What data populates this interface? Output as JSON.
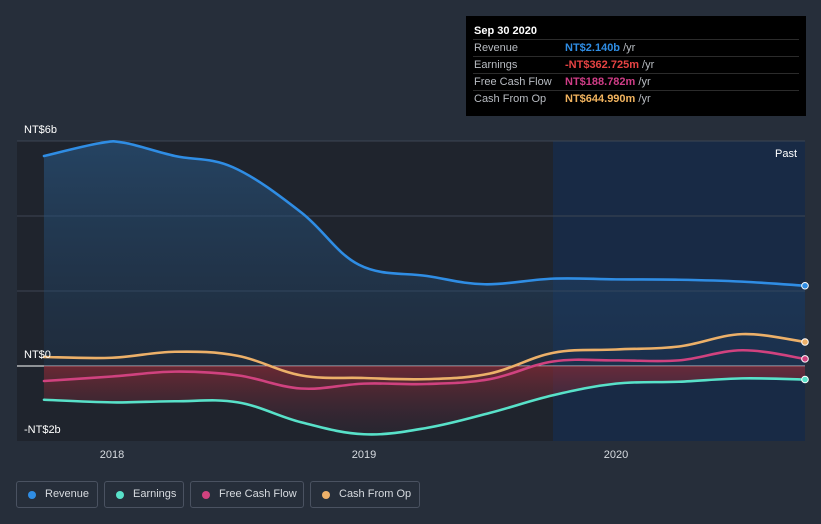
{
  "tooltip": {
    "date": "Sep 30 2020",
    "rows": [
      {
        "label": "Revenue",
        "value": "NT$2.140b",
        "unit": " /yr",
        "color": "#2f8de4"
      },
      {
        "label": "Earnings",
        "value": "-NT$362.725m",
        "unit": " /yr",
        "color": "#e64343"
      },
      {
        "label": "Free Cash Flow",
        "value": "NT$188.782m",
        "unit": " /yr",
        "color": "#d03d87"
      },
      {
        "label": "Cash From Op",
        "value": "NT$644.990m",
        "unit": " /yr",
        "color": "#f2b45f"
      }
    ]
  },
  "legend": [
    {
      "label": "Revenue",
      "color": "#2f8de4"
    },
    {
      "label": "Earnings",
      "color": "#58e1c9"
    },
    {
      "label": "Free Cash Flow",
      "color": "#d0427f"
    },
    {
      "label": "Cash From Op",
      "color": "#ecb069"
    }
  ],
  "chart_data": {
    "type": "line",
    "title": "",
    "xlabel": "",
    "ylabel": "",
    "unit": "NT$ billions",
    "ylim": [
      -2,
      6
    ],
    "y_tick_labels": [
      "NT$6b",
      "NT$0",
      "-NT$2b"
    ],
    "x_tick_labels": [
      "2018",
      "2019",
      "2020"
    ],
    "xlim": [
      2017.73,
      2020.75
    ],
    "past_label": "Past",
    "past_region_start": 2019.75,
    "grid": true,
    "series": [
      {
        "name": "Revenue",
        "color": "#2f8de4",
        "x": [
          2017.73,
          2017.95,
          2018.05,
          2018.25,
          2018.48,
          2018.75,
          2018.98,
          2019.25,
          2019.48,
          2019.75,
          2020.0,
          2020.25,
          2020.5,
          2020.75
        ],
        "y": [
          5.6,
          5.94,
          5.95,
          5.6,
          5.3,
          4.1,
          2.7,
          2.4,
          2.18,
          2.33,
          2.31,
          2.3,
          2.25,
          2.14
        ]
      },
      {
        "name": "Earnings",
        "color": "#58e1c9",
        "x": [
          2017.73,
          2018.0,
          2018.25,
          2018.5,
          2018.75,
          2019.0,
          2019.25,
          2019.5,
          2019.75,
          2020.0,
          2020.25,
          2020.5,
          2020.75
        ],
        "y": [
          -0.9,
          -0.97,
          -0.94,
          -0.97,
          -1.5,
          -1.82,
          -1.65,
          -1.25,
          -0.78,
          -0.47,
          -0.42,
          -0.33,
          -0.36
        ]
      },
      {
        "name": "Free Cash Flow",
        "color": "#d0427f",
        "x": [
          2017.73,
          2018.0,
          2018.25,
          2018.5,
          2018.75,
          2019.0,
          2019.25,
          2019.5,
          2019.75,
          2020.0,
          2020.25,
          2020.5,
          2020.75
        ],
        "y": [
          -0.4,
          -0.28,
          -0.15,
          -0.25,
          -0.6,
          -0.47,
          -0.48,
          -0.35,
          0.12,
          0.15,
          0.15,
          0.42,
          0.19
        ]
      },
      {
        "name": "Cash From Op",
        "color": "#ecb069",
        "x": [
          2017.73,
          2018.0,
          2018.25,
          2018.5,
          2018.75,
          2019.0,
          2019.25,
          2019.5,
          2019.75,
          2020.0,
          2020.25,
          2020.5,
          2020.75
        ],
        "y": [
          0.24,
          0.22,
          0.38,
          0.27,
          -0.25,
          -0.32,
          -0.35,
          -0.2,
          0.35,
          0.44,
          0.52,
          0.85,
          0.64
        ]
      }
    ]
  }
}
